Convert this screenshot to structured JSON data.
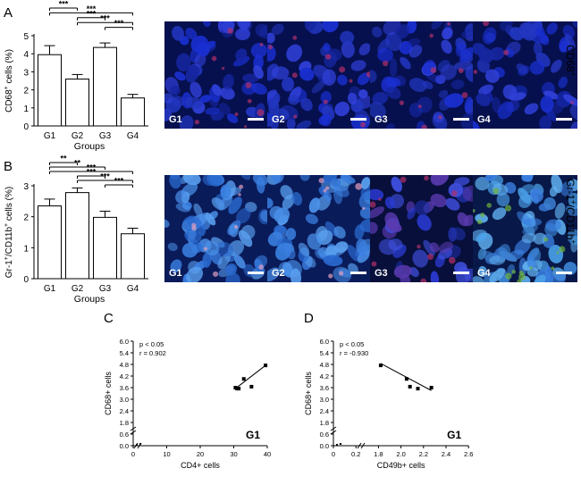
{
  "panels": {
    "A": {
      "label": "A",
      "row_label": "CD68",
      "row_label_sup": "+"
    },
    "B": {
      "label": "B",
      "row_label": "Gr-1",
      "row_label_sup": "+",
      "row_label_rest": "/CD11b",
      "row_label_sup2": "+"
    },
    "C": {
      "label": "C"
    },
    "D": {
      "label": "D"
    }
  },
  "microscopy": {
    "A": [
      "G1",
      "G2",
      "G3",
      "G4"
    ],
    "B": [
      "G1",
      "G2",
      "G3",
      "G4"
    ]
  },
  "colors": {
    "nucleus_blue": "#1a2fd0",
    "dark_blue": "#06104f",
    "cyan_blue": "#3a7fe0",
    "red_stain": "#b0306a",
    "green_stain": "#6fb040"
  },
  "chart_data": [
    {
      "id": "A",
      "type": "bar",
      "categories": [
        "G1",
        "G2",
        "G3",
        "G4"
      ],
      "values": [
        3.95,
        2.6,
        4.35,
        1.55
      ],
      "errors": [
        0.5,
        0.25,
        0.25,
        0.2
      ],
      "ylabel": "CD68",
      "ylabel_sup": "+",
      "ylabel_rest": " cells (%)",
      "xlabel": "Groups",
      "ylim": [
        0,
        5
      ],
      "yticks": [
        "0",
        "1",
        "2",
        "3",
        "4",
        "5"
      ],
      "significance": [
        {
          "from": 0,
          "to": 1,
          "label": "***"
        },
        {
          "from": 0,
          "to": 3,
          "label": "***"
        },
        {
          "from": 1,
          "to": 2,
          "label": "***"
        },
        {
          "from": 1,
          "to": 3,
          "label": "***"
        },
        {
          "from": 2,
          "to": 3,
          "label": "***"
        }
      ]
    },
    {
      "id": "B",
      "type": "bar",
      "categories": [
        "G1",
        "G2",
        "G3",
        "G4"
      ],
      "values": [
        2.35,
        2.78,
        1.98,
        1.45
      ],
      "errors": [
        0.22,
        0.15,
        0.2,
        0.18
      ],
      "ylabel": "Gr-1",
      "ylabel_sup": "+",
      "ylabel_rest": "/CD11b",
      "ylabel_sup2": "+",
      "ylabel_rest2": " cells (%)",
      "xlabel": "Groups",
      "ylim": [
        0,
        3
      ],
      "yticks": [
        "0",
        "1",
        "2",
        "3"
      ],
      "significance": [
        {
          "from": 0,
          "to": 1,
          "label": "**"
        },
        {
          "from": 0,
          "to": 2,
          "label": "**"
        },
        {
          "from": 0,
          "to": 3,
          "label": "***"
        },
        {
          "from": 1,
          "to": 2,
          "label": "***"
        },
        {
          "from": 1,
          "to": 3,
          "label": "***"
        },
        {
          "from": 2,
          "to": 3,
          "label": "***"
        }
      ]
    },
    {
      "id": "C",
      "type": "scatter",
      "xlabel": "CD4+ cells",
      "ylabel": "CD68+ cells",
      "xlim": [
        0,
        40
      ],
      "ylim": [
        0,
        6
      ],
      "xticks": [
        "0",
        "10",
        "20",
        "30",
        "40"
      ],
      "yticks": [
        "0.0",
        "0.6",
        "1.8",
        "2.4",
        "3.0",
        "3.6",
        "4.2",
        "4.8",
        "5.4",
        "6.0"
      ],
      "ytick_values": [
        0,
        0.6,
        1.8,
        2.4,
        3.0,
        3.6,
        4.2,
        4.8,
        5.4,
        6.0
      ],
      "points": [
        [
          30.5,
          3.6
        ],
        [
          31,
          3.55
        ],
        [
          31.5,
          3.55
        ],
        [
          33,
          4.05
        ],
        [
          35.3,
          3.65
        ],
        [
          39.5,
          4.75
        ]
      ],
      "fit": [
        [
          30.5,
          3.55
        ],
        [
          39.5,
          4.75
        ]
      ],
      "stats": [
        "p < 0.05",
        "r = 0.902"
      ],
      "annotation": "G1",
      "axis_break": true
    },
    {
      "id": "D",
      "type": "scatter",
      "xlabel": "CD49b+ cells",
      "ylabel": "CD68+ cells",
      "xlim": [
        0,
        2.6
      ],
      "ylim": [
        0,
        6
      ],
      "xticks": [
        "0",
        "0.2",
        "1.8",
        "2.0",
        "2.2",
        "2.4",
        "2.6"
      ],
      "xtick_values": [
        0,
        0.2,
        1.8,
        2.0,
        2.2,
        2.4,
        2.6
      ],
      "yticks": [
        "0.0",
        "0.6",
        "1.8",
        "2.4",
        "3.0",
        "3.6",
        "4.2",
        "4.8",
        "5.4",
        "6.0"
      ],
      "ytick_values": [
        0,
        0.6,
        1.8,
        2.4,
        3.0,
        3.6,
        4.2,
        4.8,
        5.4,
        6.0
      ],
      "points": [
        [
          1.82,
          4.75
        ],
        [
          2.05,
          4.05
        ],
        [
          2.08,
          3.65
        ],
        [
          2.15,
          3.55
        ],
        [
          2.27,
          3.6
        ]
      ],
      "fit": [
        [
          1.82,
          4.85
        ],
        [
          2.27,
          3.45
        ]
      ],
      "stats": [
        "p < 0.05",
        "r = -0.930"
      ],
      "annotation": "G1",
      "axis_break": true
    }
  ]
}
